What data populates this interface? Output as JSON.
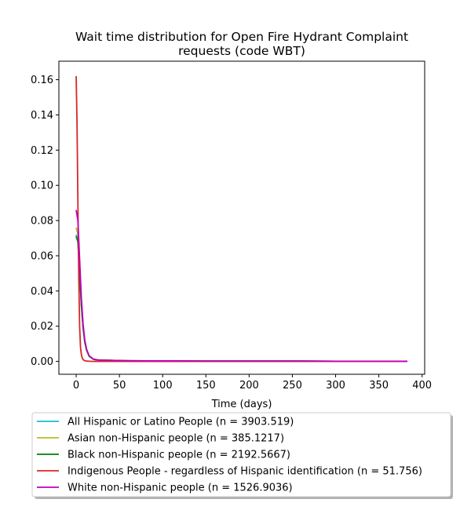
{
  "chart_data": {
    "type": "line",
    "title": "Wait time distribution  for Open Fire Hydrant Complaint requests (code WBT)",
    "title_lines": [
      "Wait time distribution  for Open Fire Hydrant Complaint",
      "requests (code WBT)"
    ],
    "xlabel": "Time (days)",
    "ylabel": "",
    "xlim": [
      -20,
      403
    ],
    "ylim": [
      -0.0073,
      0.1705
    ],
    "xticks": [
      0,
      50,
      100,
      150,
      200,
      250,
      300,
      350,
      400
    ],
    "yticks": [
      0.0,
      0.02,
      0.04,
      0.06,
      0.08,
      0.1,
      0.12,
      0.14,
      0.16
    ],
    "ytick_labels": [
      "0.00",
      "0.02",
      "0.04",
      "0.06",
      "0.08",
      "0.10",
      "0.12",
      "0.14",
      "0.16"
    ],
    "grid": false,
    "legend_position": "bottom, below axes",
    "series": [
      {
        "name": "All Hispanic or Latino People (n = 3903.519)",
        "color": "#17becf",
        "x": [
          0,
          2,
          4,
          6,
          8,
          10,
          12,
          15,
          20,
          25,
          30,
          40,
          50,
          60,
          80,
          100,
          120,
          150,
          200,
          250,
          300,
          350,
          383
        ],
        "y": [
          0.072,
          0.068,
          0.05,
          0.032,
          0.019,
          0.011,
          0.0065,
          0.003,
          0.0012,
          0.0008,
          0.0007,
          0.0006,
          0.0005,
          0.0004,
          0.0003,
          0.0003,
          0.0003,
          0.0002,
          0.0002,
          0.0002,
          0.0001,
          0.0001,
          0.0001
        ]
      },
      {
        "name": "Asian non-Hispanic people (n = 385.1217)",
        "color": "#bcbd22",
        "x": [
          0,
          2,
          4,
          6,
          8,
          10,
          12,
          15,
          20,
          25,
          30,
          40,
          50,
          60,
          80,
          100,
          120,
          150,
          200,
          250,
          300,
          350,
          383
        ],
        "y": [
          0.076,
          0.072,
          0.053,
          0.034,
          0.02,
          0.011,
          0.0065,
          0.003,
          0.0012,
          0.0008,
          0.0007,
          0.0006,
          0.0005,
          0.0004,
          0.0003,
          0.0003,
          0.0003,
          0.0002,
          0.0002,
          0.0002,
          0.0001,
          0.0001,
          0.0001
        ]
      },
      {
        "name": "Black non-Hispanic people (n = 2192.5667)",
        "color": "#008000",
        "x": [
          0,
          2,
          4,
          6,
          8,
          10,
          12,
          15,
          20,
          25,
          30,
          40,
          50,
          60,
          80,
          100,
          120,
          150,
          200,
          250,
          300,
          350,
          383
        ],
        "y": [
          0.071,
          0.068,
          0.05,
          0.032,
          0.019,
          0.011,
          0.0065,
          0.003,
          0.0012,
          0.0008,
          0.0007,
          0.0006,
          0.0005,
          0.0004,
          0.0003,
          0.0003,
          0.0003,
          0.0002,
          0.0002,
          0.0002,
          0.0001,
          0.0001,
          0.0001
        ]
      },
      {
        "name": "Indigenous People - regardless of Hispanic identification (n = 51.756)",
        "color": "#d62728",
        "x": [
          0,
          1,
          2,
          3,
          4,
          5,
          6,
          7,
          8,
          10,
          12,
          15,
          20,
          30,
          50,
          100,
          200,
          300,
          383
        ],
        "y": [
          0.162,
          0.135,
          0.09,
          0.048,
          0.02,
          0.008,
          0.004,
          0.002,
          0.001,
          0.0004,
          0.0002,
          0.0001,
          0.0,
          0.0,
          0.0,
          0.0,
          0.0,
          0.0,
          0.0
        ]
      },
      {
        "name": "White non-Hispanic people (n = 1526.9036)",
        "color": "#bf00bf",
        "x": [
          0,
          2,
          4,
          6,
          8,
          10,
          12,
          15,
          20,
          25,
          30,
          40,
          50,
          60,
          80,
          100,
          120,
          150,
          200,
          250,
          300,
          350,
          383
        ],
        "y": [
          0.086,
          0.08,
          0.058,
          0.036,
          0.021,
          0.012,
          0.007,
          0.0032,
          0.0013,
          0.0009,
          0.0007,
          0.0006,
          0.0005,
          0.0004,
          0.0003,
          0.0003,
          0.0003,
          0.0002,
          0.0002,
          0.0002,
          0.0001,
          0.0001,
          0.0001
        ]
      }
    ]
  }
}
